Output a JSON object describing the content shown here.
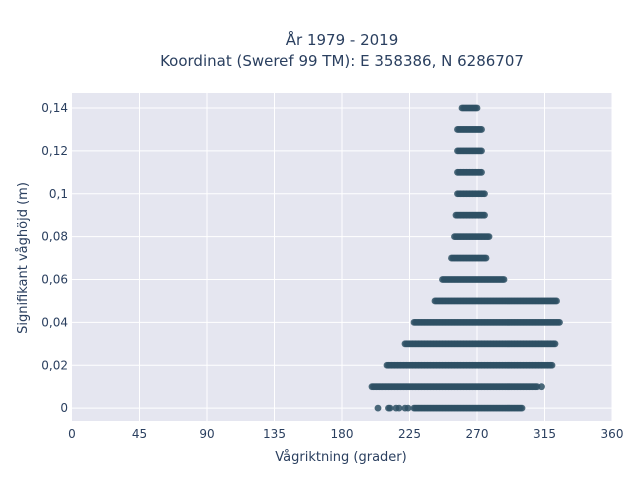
{
  "chart_data": {
    "type": "scatter",
    "title_line1": "År 1979 - 2019",
    "title_line2": "Koordinat (Sweref 99 TM): E 358386, N 6286707",
    "xlabel": "Vågriktning (grader)",
    "ylabel": "Signifikant våghöjd (m)",
    "xlim": [
      0,
      360
    ],
    "ylim": [
      -0.006,
      0.147
    ],
    "x_ticks": [
      0,
      45,
      90,
      135,
      180,
      225,
      270,
      315,
      360
    ],
    "x_tick_labels": [
      "0",
      "45",
      "90",
      "135",
      "180",
      "225",
      "270",
      "315",
      "360"
    ],
    "y_ticks": [
      0,
      0.02,
      0.04,
      0.06,
      0.08,
      0.1,
      0.12,
      0.14
    ],
    "y_tick_labels": [
      "0",
      "0,02",
      "0,04",
      "0,06",
      "0,08",
      "0,1",
      "0,12",
      "0,14"
    ],
    "grid": true,
    "marker_color": "#2e5064",
    "plot_bg": "#e5e6f0",
    "series": [
      {
        "bands": [
          {
            "y": 0.14,
            "x_min": 260,
            "x_max": 270
          },
          {
            "y": 0.13,
            "x_min": 257,
            "x_max": 273
          },
          {
            "y": 0.12,
            "x_min": 257,
            "x_max": 273
          },
          {
            "y": 0.11,
            "x_min": 257,
            "x_max": 273
          },
          {
            "y": 0.1,
            "x_min": 257,
            "x_max": 275
          },
          {
            "y": 0.09,
            "x_min": 256,
            "x_max": 275
          },
          {
            "y": 0.08,
            "x_min": 255,
            "x_max": 278
          },
          {
            "y": 0.07,
            "x_min": 253,
            "x_max": 276
          },
          {
            "y": 0.06,
            "x_min": 247,
            "x_max": 288
          },
          {
            "y": 0.05,
            "x_min": 242,
            "x_max": 323
          },
          {
            "y": 0.04,
            "x_min": 228,
            "x_max": 325
          },
          {
            "y": 0.03,
            "x_min": 222,
            "x_max": 322
          },
          {
            "y": 0.02,
            "x_min": 210,
            "x_max": 320
          },
          {
            "y": 0.01,
            "x_min": 200,
            "x_max": 310
          },
          {
            "y": 0.0,
            "x_min": 228,
            "x_max": 300
          }
        ],
        "extra_points": [
          {
            "x": 216,
            "y": 0.0
          },
          {
            "x": 218,
            "y": 0.0
          },
          {
            "x": 211,
            "y": 0.0
          },
          {
            "x": 212,
            "y": 0.0
          },
          {
            "x": 222,
            "y": 0.0
          },
          {
            "x": 224,
            "y": 0.0
          },
          {
            "x": 204,
            "y": 0.0
          },
          {
            "x": 313,
            "y": 0.01
          }
        ]
      }
    ]
  }
}
